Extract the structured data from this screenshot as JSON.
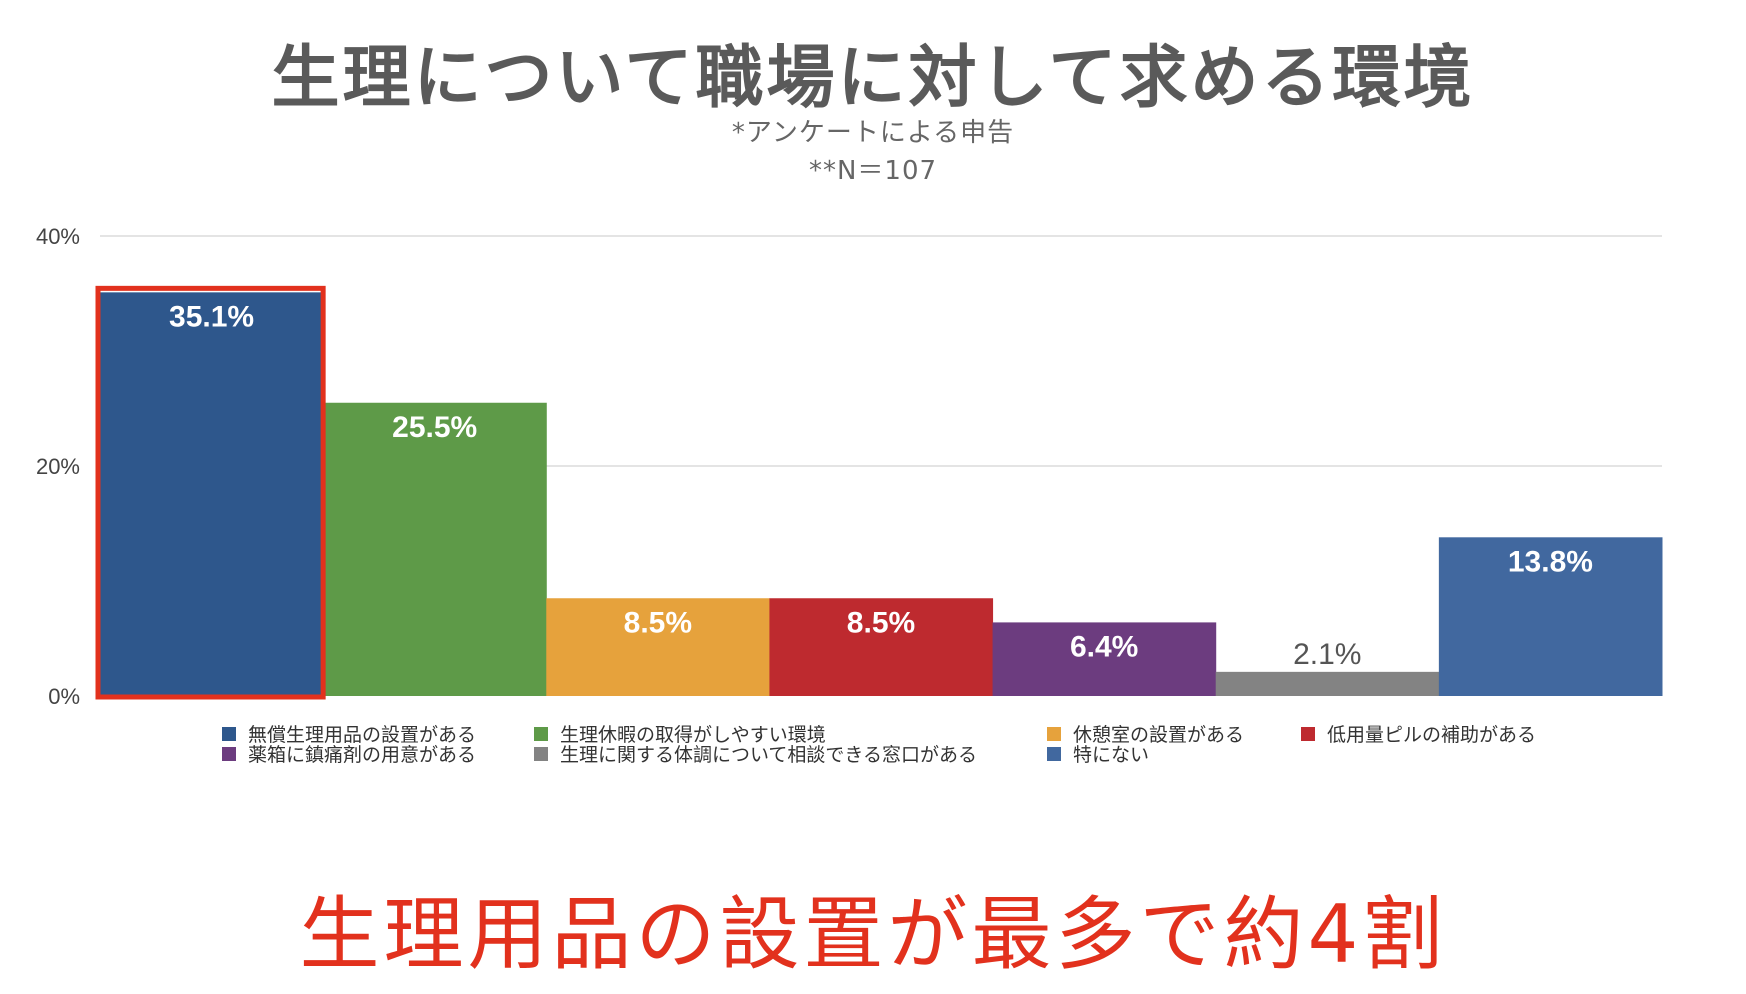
{
  "title": "生理について職場に対して求める環境",
  "subtitle_line1": "*アンケートによる申告",
  "subtitle_line2": "**N＝107",
  "conclusion": "生理用品の設置が最多で約4割",
  "highlight_color": "#e2311d",
  "chart_data": {
    "type": "bar",
    "title": "生理について職場に対して求める環境",
    "xlabel": "",
    "ylabel": "",
    "ylim": [
      0,
      40
    ],
    "yticks": [
      0,
      20,
      40
    ],
    "ytick_labels": [
      "0%",
      "20%",
      "40%"
    ],
    "grid": true,
    "legend_position": "bottom",
    "highlighted_category_index": 0,
    "categories": [
      "無償生理用品の設置がある",
      "生理休暇の取得がしやすい環境",
      "休憩室の設置がある",
      "低用量ピルの補助がある",
      "薬箱に鎮痛剤の用意がある",
      "生理に関する体調について相談できる窓口がある",
      "特にない"
    ],
    "values": [
      35.1,
      25.5,
      8.5,
      8.5,
      6.4,
      2.1,
      13.8
    ],
    "value_labels": [
      "35.1%",
      "25.5%",
      "8.5%",
      "8.5%",
      "6.4%",
      "2.1%",
      "13.8%"
    ],
    "colors": [
      "#2e578c",
      "#5e9a48",
      "#e6a23c",
      "#be2a2f",
      "#6c3c7f",
      "#838383",
      "#41689f"
    ]
  }
}
